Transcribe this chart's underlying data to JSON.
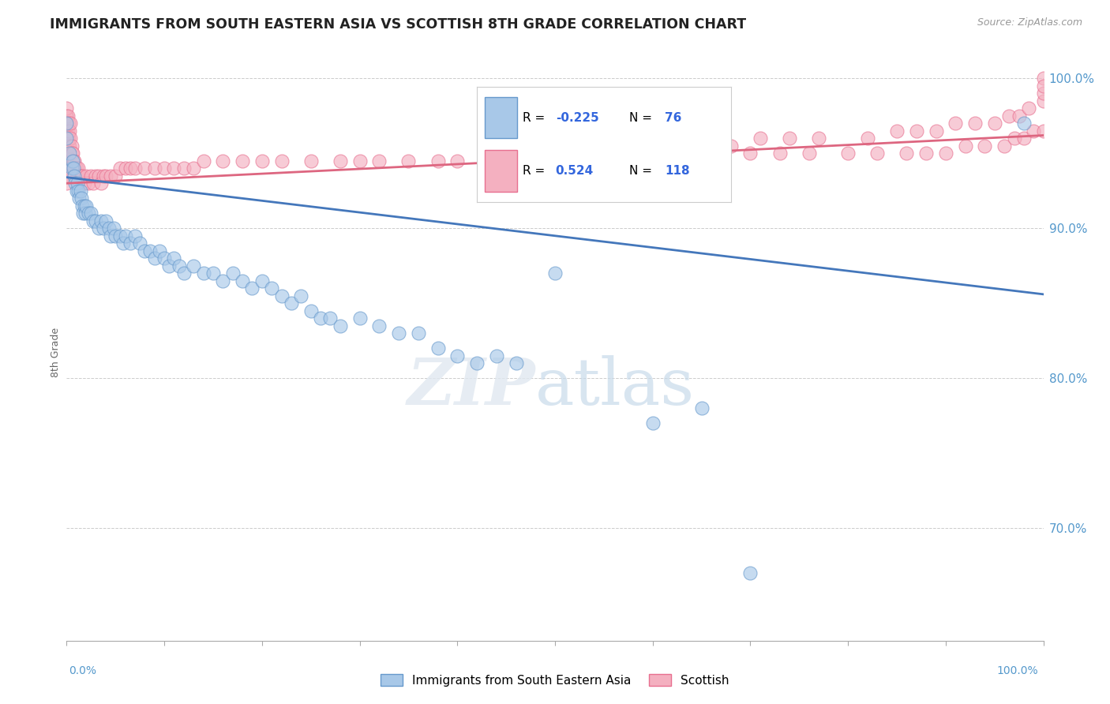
{
  "title": "IMMIGRANTS FROM SOUTH EASTERN ASIA VS SCOTTISH 8TH GRADE CORRELATION CHART",
  "source_text": "Source: ZipAtlas.com",
  "ylabel": "8th Grade",
  "x_min": 0.0,
  "x_max": 1.0,
  "y_min": 0.625,
  "y_max": 1.01,
  "y_ticks": [
    0.7,
    0.8,
    0.9,
    1.0
  ],
  "y_tick_labels": [
    "70.0%",
    "80.0%",
    "90.0%",
    "100.0%"
  ],
  "blue_R": -0.225,
  "blue_N": 76,
  "pink_R": 0.524,
  "pink_N": 118,
  "blue_color": "#a8c8e8",
  "pink_color": "#f4b0c0",
  "blue_edge_color": "#6699cc",
  "pink_edge_color": "#e87090",
  "blue_line_color": "#4477bb",
  "pink_line_color": "#dd6680",
  "legend_R_color": "#3366dd",
  "grid_color": "#cccccc",
  "axis_tick_color": "#5599cc",
  "blue_line_x0": 0.0,
  "blue_line_x1": 1.0,
  "blue_line_y0": 0.934,
  "blue_line_y1": 0.856,
  "pink_line_x0": 0.0,
  "pink_line_x1": 1.0,
  "pink_line_y0": 0.93,
  "pink_line_y1": 0.962,
  "blue_scatter_x": [
    0.0,
    0.0,
    0.003,
    0.005,
    0.006,
    0.007,
    0.008,
    0.009,
    0.01,
    0.011,
    0.012,
    0.013,
    0.014,
    0.015,
    0.016,
    0.017,
    0.018,
    0.019,
    0.02,
    0.022,
    0.025,
    0.027,
    0.03,
    0.033,
    0.035,
    0.038,
    0.04,
    0.043,
    0.045,
    0.048,
    0.05,
    0.055,
    0.058,
    0.06,
    0.065,
    0.07,
    0.075,
    0.08,
    0.085,
    0.09,
    0.095,
    0.1,
    0.105,
    0.11,
    0.115,
    0.12,
    0.13,
    0.14,
    0.15,
    0.16,
    0.17,
    0.18,
    0.19,
    0.2,
    0.21,
    0.22,
    0.23,
    0.24,
    0.25,
    0.26,
    0.27,
    0.28,
    0.3,
    0.32,
    0.34,
    0.36,
    0.38,
    0.4,
    0.42,
    0.44,
    0.46,
    0.5,
    0.6,
    0.65,
    0.7,
    0.98
  ],
  "blue_scatter_y": [
    0.97,
    0.96,
    0.95,
    0.94,
    0.945,
    0.94,
    0.935,
    0.93,
    0.925,
    0.93,
    0.925,
    0.92,
    0.925,
    0.92,
    0.915,
    0.91,
    0.915,
    0.91,
    0.915,
    0.91,
    0.91,
    0.905,
    0.905,
    0.9,
    0.905,
    0.9,
    0.905,
    0.9,
    0.895,
    0.9,
    0.895,
    0.895,
    0.89,
    0.895,
    0.89,
    0.895,
    0.89,
    0.885,
    0.885,
    0.88,
    0.885,
    0.88,
    0.875,
    0.88,
    0.875,
    0.87,
    0.875,
    0.87,
    0.87,
    0.865,
    0.87,
    0.865,
    0.86,
    0.865,
    0.86,
    0.855,
    0.85,
    0.855,
    0.845,
    0.84,
    0.84,
    0.835,
    0.84,
    0.835,
    0.83,
    0.83,
    0.82,
    0.815,
    0.81,
    0.815,
    0.81,
    0.87,
    0.77,
    0.78,
    0.67,
    0.97
  ],
  "pink_scatter_x": [
    0.0,
    0.0,
    0.0,
    0.0,
    0.0,
    0.0,
    0.0,
    0.0,
    0.0,
    0.0,
    0.0,
    0.0,
    0.0,
    0.0,
    0.0,
    0.0,
    0.0,
    0.0,
    0.0,
    0.0,
    0.001,
    0.001,
    0.001,
    0.002,
    0.002,
    0.002,
    0.003,
    0.003,
    0.004,
    0.004,
    0.005,
    0.005,
    0.006,
    0.007,
    0.008,
    0.009,
    0.01,
    0.011,
    0.012,
    0.013,
    0.015,
    0.016,
    0.018,
    0.02,
    0.022,
    0.025,
    0.027,
    0.03,
    0.033,
    0.035,
    0.038,
    0.04,
    0.045,
    0.05,
    0.055,
    0.06,
    0.065,
    0.07,
    0.08,
    0.09,
    0.1,
    0.11,
    0.12,
    0.13,
    0.14,
    0.16,
    0.18,
    0.2,
    0.22,
    0.25,
    0.28,
    0.3,
    0.32,
    0.35,
    0.38,
    0.4,
    0.43,
    0.46,
    0.5,
    0.53,
    0.56,
    0.6,
    0.63,
    0.66,
    0.7,
    0.73,
    0.76,
    0.8,
    0.83,
    0.86,
    0.88,
    0.9,
    0.92,
    0.94,
    0.96,
    0.97,
    0.98,
    0.99,
    1.0,
    1.0,
    0.65,
    0.68,
    0.71,
    0.74,
    0.77,
    0.82,
    0.85,
    0.87,
    0.89,
    0.91,
    0.93,
    0.95,
    0.965,
    0.975,
    0.985,
    1.0,
    1.0,
    1.0
  ],
  "pink_scatter_y": [
    0.975,
    0.97,
    0.965,
    0.96,
    0.955,
    0.95,
    0.945,
    0.94,
    0.935,
    0.93,
    0.97,
    0.965,
    0.96,
    0.955,
    0.95,
    0.945,
    0.94,
    0.935,
    0.975,
    0.98,
    0.975,
    0.965,
    0.96,
    0.97,
    0.96,
    0.955,
    0.965,
    0.955,
    0.97,
    0.96,
    0.955,
    0.95,
    0.95,
    0.945,
    0.945,
    0.94,
    0.94,
    0.935,
    0.94,
    0.935,
    0.935,
    0.935,
    0.93,
    0.935,
    0.93,
    0.935,
    0.93,
    0.935,
    0.935,
    0.93,
    0.935,
    0.935,
    0.935,
    0.935,
    0.94,
    0.94,
    0.94,
    0.94,
    0.94,
    0.94,
    0.94,
    0.94,
    0.94,
    0.94,
    0.945,
    0.945,
    0.945,
    0.945,
    0.945,
    0.945,
    0.945,
    0.945,
    0.945,
    0.945,
    0.945,
    0.945,
    0.945,
    0.945,
    0.945,
    0.945,
    0.945,
    0.945,
    0.945,
    0.95,
    0.95,
    0.95,
    0.95,
    0.95,
    0.95,
    0.95,
    0.95,
    0.95,
    0.955,
    0.955,
    0.955,
    0.96,
    0.96,
    0.965,
    0.965,
    1.0,
    0.955,
    0.955,
    0.96,
    0.96,
    0.96,
    0.96,
    0.965,
    0.965,
    0.965,
    0.97,
    0.97,
    0.97,
    0.975,
    0.975,
    0.98,
    0.985,
    0.99,
    0.995
  ]
}
